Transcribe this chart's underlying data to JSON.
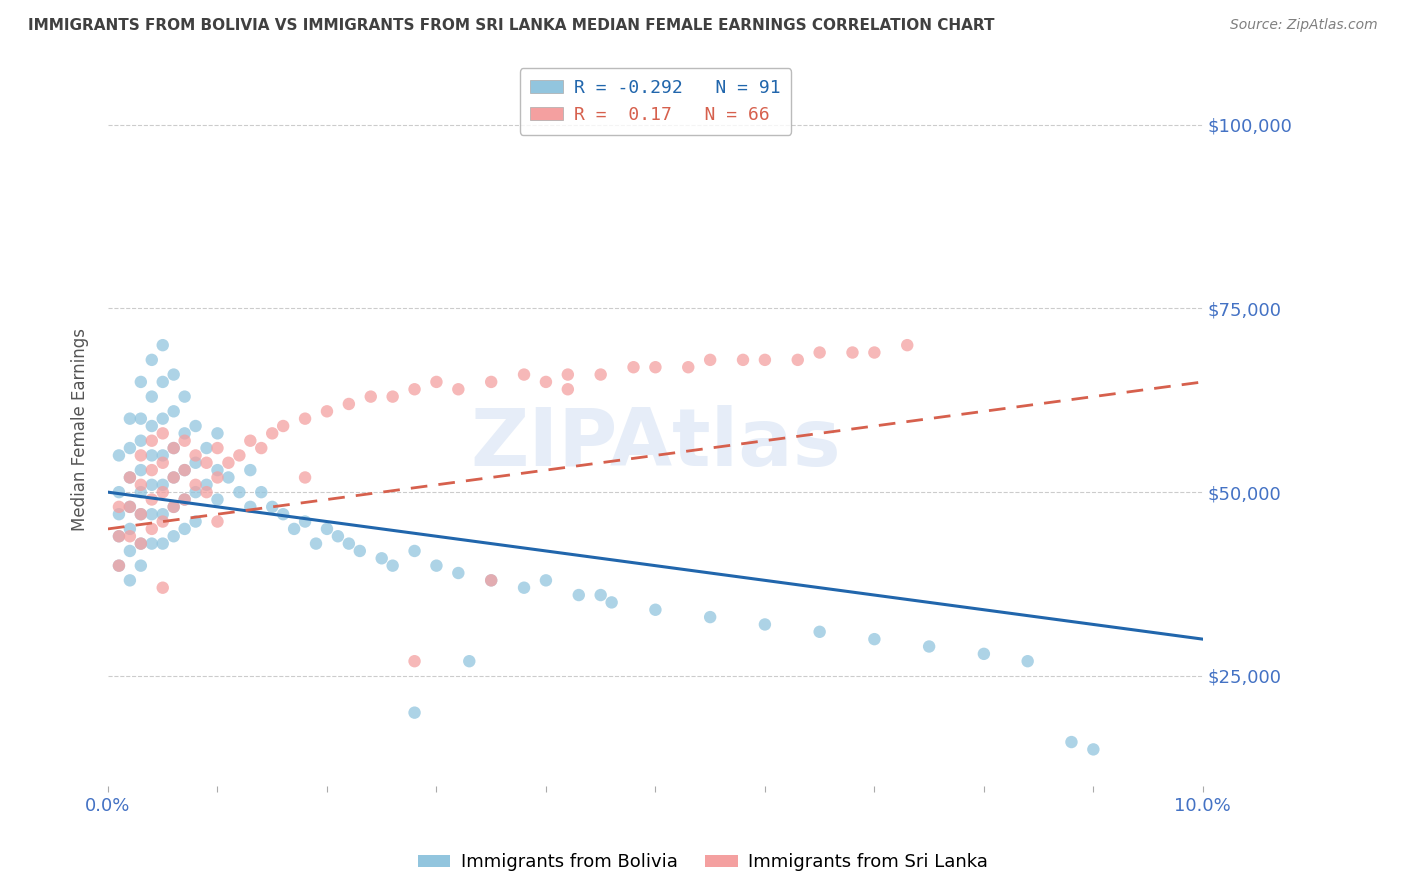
{
  "title": "IMMIGRANTS FROM BOLIVIA VS IMMIGRANTS FROM SRI LANKA MEDIAN FEMALE EARNINGS CORRELATION CHART",
  "source": "Source: ZipAtlas.com",
  "ylabel": "Median Female Earnings",
  "xlim": [
    0.0,
    0.1
  ],
  "ylim": [
    10000,
    107000
  ],
  "yticks": [
    25000,
    50000,
    75000,
    100000
  ],
  "ytick_labels": [
    "$25,000",
    "$50,000",
    "$75,000",
    "$100,000"
  ],
  "xticks": [
    0.0,
    0.01,
    0.02,
    0.03,
    0.04,
    0.05,
    0.06,
    0.07,
    0.08,
    0.09,
    0.1
  ],
  "bolivia_color": "#92c5de",
  "sri_lanka_color": "#f4a0a0",
  "bolivia_line_color": "#2166ac",
  "sri_lanka_line_color": "#d6604d",
  "bolivia_R": -0.292,
  "bolivia_N": 91,
  "sri_lanka_R": 0.17,
  "sri_lanka_N": 66,
  "watermark": "ZIPAtlas",
  "bolivia_scatter_x": [
    0.001,
    0.001,
    0.001,
    0.001,
    0.001,
    0.002,
    0.002,
    0.002,
    0.002,
    0.002,
    0.002,
    0.002,
    0.003,
    0.003,
    0.003,
    0.003,
    0.003,
    0.003,
    0.003,
    0.003,
    0.004,
    0.004,
    0.004,
    0.004,
    0.004,
    0.004,
    0.004,
    0.005,
    0.005,
    0.005,
    0.005,
    0.005,
    0.005,
    0.005,
    0.006,
    0.006,
    0.006,
    0.006,
    0.006,
    0.006,
    0.007,
    0.007,
    0.007,
    0.007,
    0.007,
    0.008,
    0.008,
    0.008,
    0.008,
    0.009,
    0.009,
    0.01,
    0.01,
    0.01,
    0.011,
    0.012,
    0.013,
    0.013,
    0.014,
    0.015,
    0.016,
    0.017,
    0.018,
    0.019,
    0.02,
    0.021,
    0.022,
    0.023,
    0.025,
    0.026,
    0.028,
    0.03,
    0.032,
    0.035,
    0.038,
    0.04,
    0.043,
    0.046,
    0.05,
    0.055,
    0.06,
    0.065,
    0.07,
    0.075,
    0.08,
    0.084,
    0.088,
    0.09,
    0.045,
    0.033,
    0.028
  ],
  "bolivia_scatter_y": [
    55000,
    50000,
    47000,
    44000,
    40000,
    60000,
    56000,
    52000,
    48000,
    45000,
    42000,
    38000,
    65000,
    60000,
    57000,
    53000,
    50000,
    47000,
    43000,
    40000,
    68000,
    63000,
    59000,
    55000,
    51000,
    47000,
    43000,
    70000,
    65000,
    60000,
    55000,
    51000,
    47000,
    43000,
    66000,
    61000,
    56000,
    52000,
    48000,
    44000,
    63000,
    58000,
    53000,
    49000,
    45000,
    59000,
    54000,
    50000,
    46000,
    56000,
    51000,
    58000,
    53000,
    49000,
    52000,
    50000,
    53000,
    48000,
    50000,
    48000,
    47000,
    45000,
    46000,
    43000,
    45000,
    44000,
    43000,
    42000,
    41000,
    40000,
    42000,
    40000,
    39000,
    38000,
    37000,
    38000,
    36000,
    35000,
    34000,
    33000,
    32000,
    31000,
    30000,
    29000,
    28000,
    27000,
    16000,
    15000,
    36000,
    27000,
    20000
  ],
  "sri_lanka_scatter_x": [
    0.001,
    0.001,
    0.001,
    0.002,
    0.002,
    0.002,
    0.003,
    0.003,
    0.003,
    0.003,
    0.004,
    0.004,
    0.004,
    0.004,
    0.005,
    0.005,
    0.005,
    0.005,
    0.006,
    0.006,
    0.006,
    0.007,
    0.007,
    0.007,
    0.008,
    0.008,
    0.009,
    0.009,
    0.01,
    0.01,
    0.011,
    0.012,
    0.013,
    0.014,
    0.015,
    0.016,
    0.018,
    0.02,
    0.022,
    0.024,
    0.026,
    0.028,
    0.03,
    0.032,
    0.035,
    0.038,
    0.04,
    0.042,
    0.045,
    0.048,
    0.05,
    0.053,
    0.055,
    0.058,
    0.06,
    0.063,
    0.065,
    0.068,
    0.07,
    0.073,
    0.042,
    0.028,
    0.018,
    0.01,
    0.005,
    0.035
  ],
  "sri_lanka_scatter_y": [
    48000,
    44000,
    40000,
    52000,
    48000,
    44000,
    55000,
    51000,
    47000,
    43000,
    57000,
    53000,
    49000,
    45000,
    58000,
    54000,
    50000,
    46000,
    56000,
    52000,
    48000,
    57000,
    53000,
    49000,
    55000,
    51000,
    54000,
    50000,
    56000,
    52000,
    54000,
    55000,
    57000,
    56000,
    58000,
    59000,
    60000,
    61000,
    62000,
    63000,
    63000,
    64000,
    65000,
    64000,
    65000,
    66000,
    65000,
    66000,
    66000,
    67000,
    67000,
    67000,
    68000,
    68000,
    68000,
    68000,
    69000,
    69000,
    69000,
    70000,
    64000,
    27000,
    52000,
    46000,
    37000,
    38000
  ],
  "background_color": "#ffffff",
  "grid_color": "#cccccc",
  "axis_color": "#4472c4",
  "title_color": "#404040",
  "source_color": "#808080",
  "bolivia_trend_x0": 0.0,
  "bolivia_trend_y0": 50000,
  "bolivia_trend_x1": 0.1,
  "bolivia_trend_y1": 30000,
  "sri_lanka_trend_x0": 0.0,
  "sri_lanka_trend_y0": 45000,
  "sri_lanka_trend_x1": 0.1,
  "sri_lanka_trend_y1": 65000
}
